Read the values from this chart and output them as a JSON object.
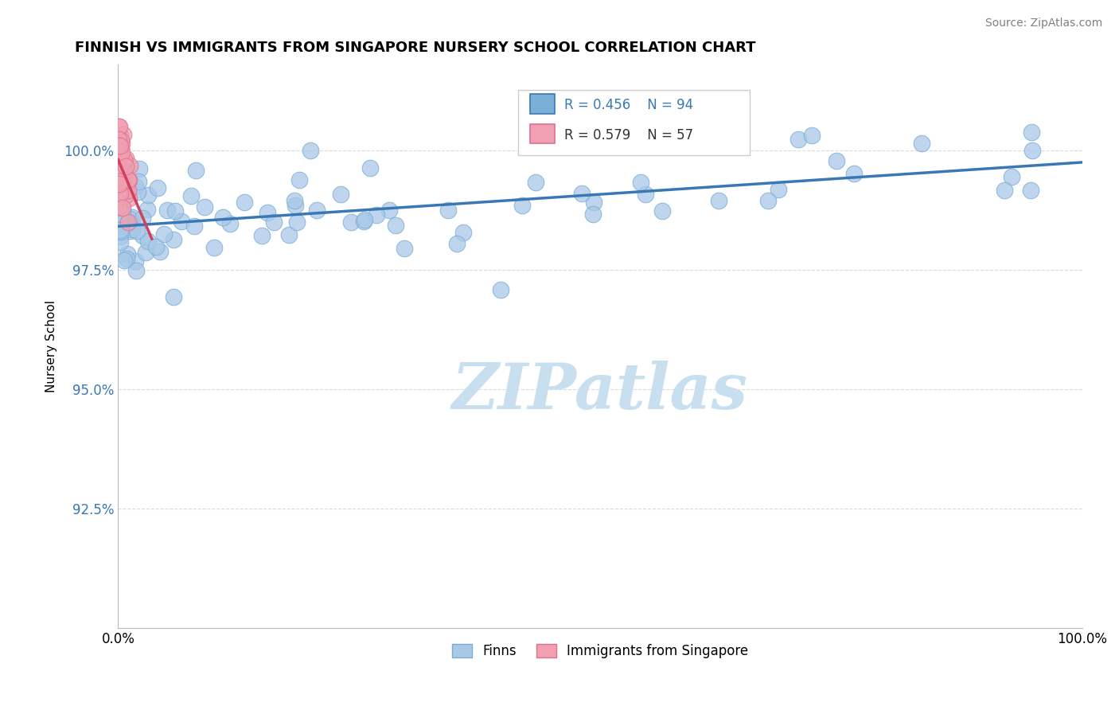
{
  "title": "FINNISH VS IMMIGRANTS FROM SINGAPORE NURSERY SCHOOL CORRELATION CHART",
  "source": "Source: ZipAtlas.com",
  "ylabel": "Nursery School",
  "xlim": [
    0,
    100
  ],
  "ylim": [
    90.0,
    101.8
  ],
  "yticks": [
    92.5,
    95.0,
    97.5,
    100.0
  ],
  "yticklabels": [
    "92.5%",
    "95.0%",
    "97.5%",
    "100.0%"
  ],
  "xtick_positions": [
    0,
    100
  ],
  "xticklabels": [
    "0.0%",
    "100.0%"
  ],
  "legend1_label": "Finns",
  "legend2_label": "Immigrants from Singapore",
  "r1": 0.456,
  "n1": 94,
  "r2": 0.579,
  "n2": 57,
  "blue_color": "#a8c8e8",
  "blue_edge": "#7aadd4",
  "blue_line": "#3a78b5",
  "pink_color": "#f0a0b0",
  "pink_edge": "#e07090",
  "pink_line": "#d04060",
  "legend_blue_fill": "#7ab0d8",
  "legend_pink_fill": "#f0a0b0",
  "ytick_color": "#3a78b5",
  "watermark_color": "#c8dff0",
  "title_fontsize": 13,
  "source_fontsize": 10,
  "tick_fontsize": 12,
  "ylabel_fontsize": 11
}
